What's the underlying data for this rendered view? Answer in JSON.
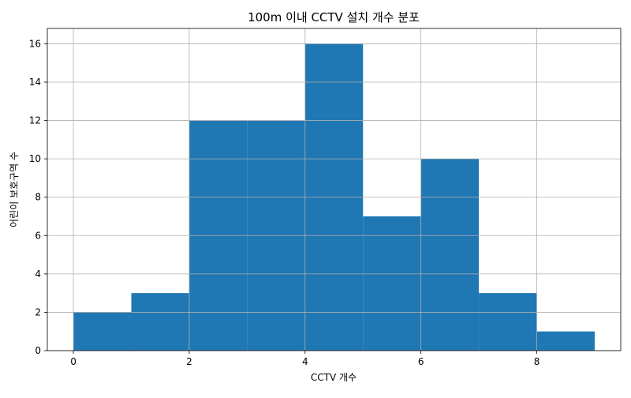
{
  "chart_data": {
    "type": "bar",
    "title": "100m 이내 CCTV 설치 개수 분포",
    "xlabel": "CCTV 개수",
    "ylabel": "어린이 보호구역 수",
    "bins": [
      {
        "start": 0,
        "end": 1,
        "count": 2
      },
      {
        "start": 1,
        "end": 2,
        "count": 3
      },
      {
        "start": 2,
        "end": 3,
        "count": 12
      },
      {
        "start": 3,
        "end": 4,
        "count": 12
      },
      {
        "start": 4,
        "end": 5,
        "count": 16
      },
      {
        "start": 5,
        "end": 6,
        "count": 7
      },
      {
        "start": 6,
        "end": 7,
        "count": 10
      },
      {
        "start": 7,
        "end": 8,
        "count": 3
      },
      {
        "start": 8,
        "end": 9,
        "count": 1
      }
    ],
    "xlim": [
      -0.45,
      9.45
    ],
    "ylim": [
      0,
      16.8
    ],
    "xticks": [
      0,
      2,
      4,
      6,
      8
    ],
    "yticks": [
      0,
      2,
      4,
      6,
      8,
      10,
      12,
      14,
      16
    ],
    "grid": true,
    "colors": {
      "bar": "#1f77b4",
      "grid": "#b0b0b0",
      "axis": "#000000"
    }
  }
}
